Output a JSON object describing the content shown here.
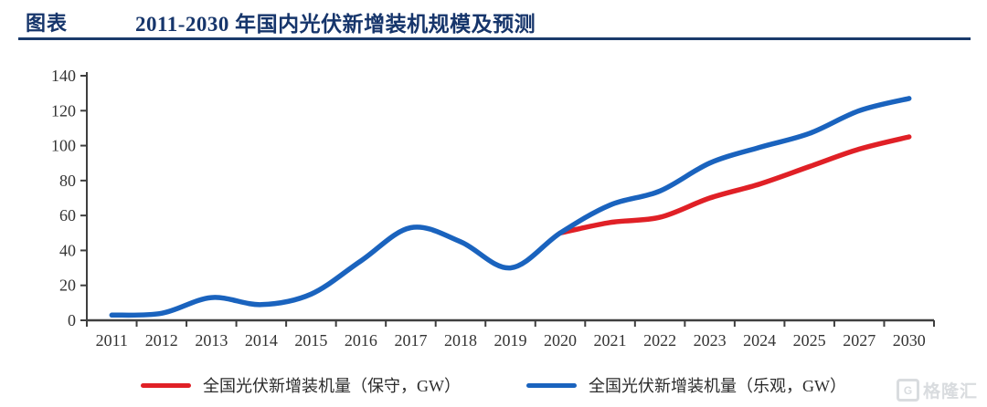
{
  "header": {
    "label": "图表",
    "title": "2011-2030 年国内光伏新增装机规模及预测"
  },
  "chart_data": {
    "type": "line",
    "title": "2011-2030 年国内光伏新增装机规模及预测",
    "categories": [
      "2011",
      "2012",
      "2013",
      "2014",
      "2015",
      "2016",
      "2017",
      "2018",
      "2019",
      "2020",
      "2021",
      "2022",
      "2023",
      "2024",
      "2025",
      "2027",
      "2030"
    ],
    "series": [
      {
        "name": "全国光伏新增装机量（保守，GW）",
        "color": "#e02026",
        "values": [
          null,
          null,
          null,
          null,
          null,
          null,
          null,
          null,
          null,
          50,
          56,
          59,
          70,
          78,
          88,
          98,
          105
        ]
      },
      {
        "name": "全国光伏新增装机量（乐观，GW）",
        "color": "#1a63be",
        "values": [
          3,
          4,
          13,
          9,
          15,
          34,
          53,
          45,
          30,
          50,
          66,
          74,
          90,
          99,
          107,
          120,
          127
        ]
      }
    ],
    "xlabel": "",
    "ylabel": "",
    "ylim": [
      0,
      140
    ],
    "ytick_step": 20,
    "grid": false,
    "legend_position": "bottom",
    "axis_color": "#3f3f3f",
    "tick_label_color": "#333333"
  },
  "watermark": {
    "logo_letter": "G",
    "text": "格隆汇"
  }
}
